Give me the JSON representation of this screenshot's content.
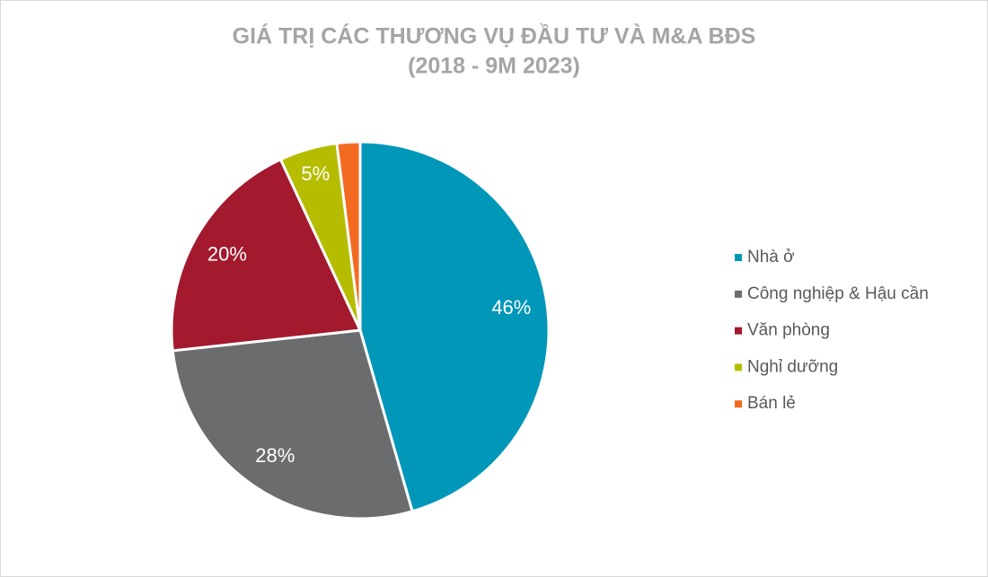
{
  "chart_data": {
    "type": "pie",
    "title": "GIÁ TRỊ CÁC THƯƠNG VỤ ĐẦU TƯ VÀ M&A BĐS",
    "subtitle": "(2018 - 9M 2023)",
    "categories": [
      "Nhà ở",
      "Công nghiệp & Hậu cần",
      "Văn phòng",
      "Nghỉ dưỡng",
      "Bán lẻ"
    ],
    "values": [
      46,
      28,
      20,
      5,
      2
    ],
    "value_labels": [
      "46%",
      "28%",
      "20%",
      "5%",
      null
    ],
    "colors": [
      "#0097b9",
      "#6b6c6e",
      "#a3192e",
      "#b6bd00",
      "#f36a21"
    ],
    "legend": "right"
  }
}
